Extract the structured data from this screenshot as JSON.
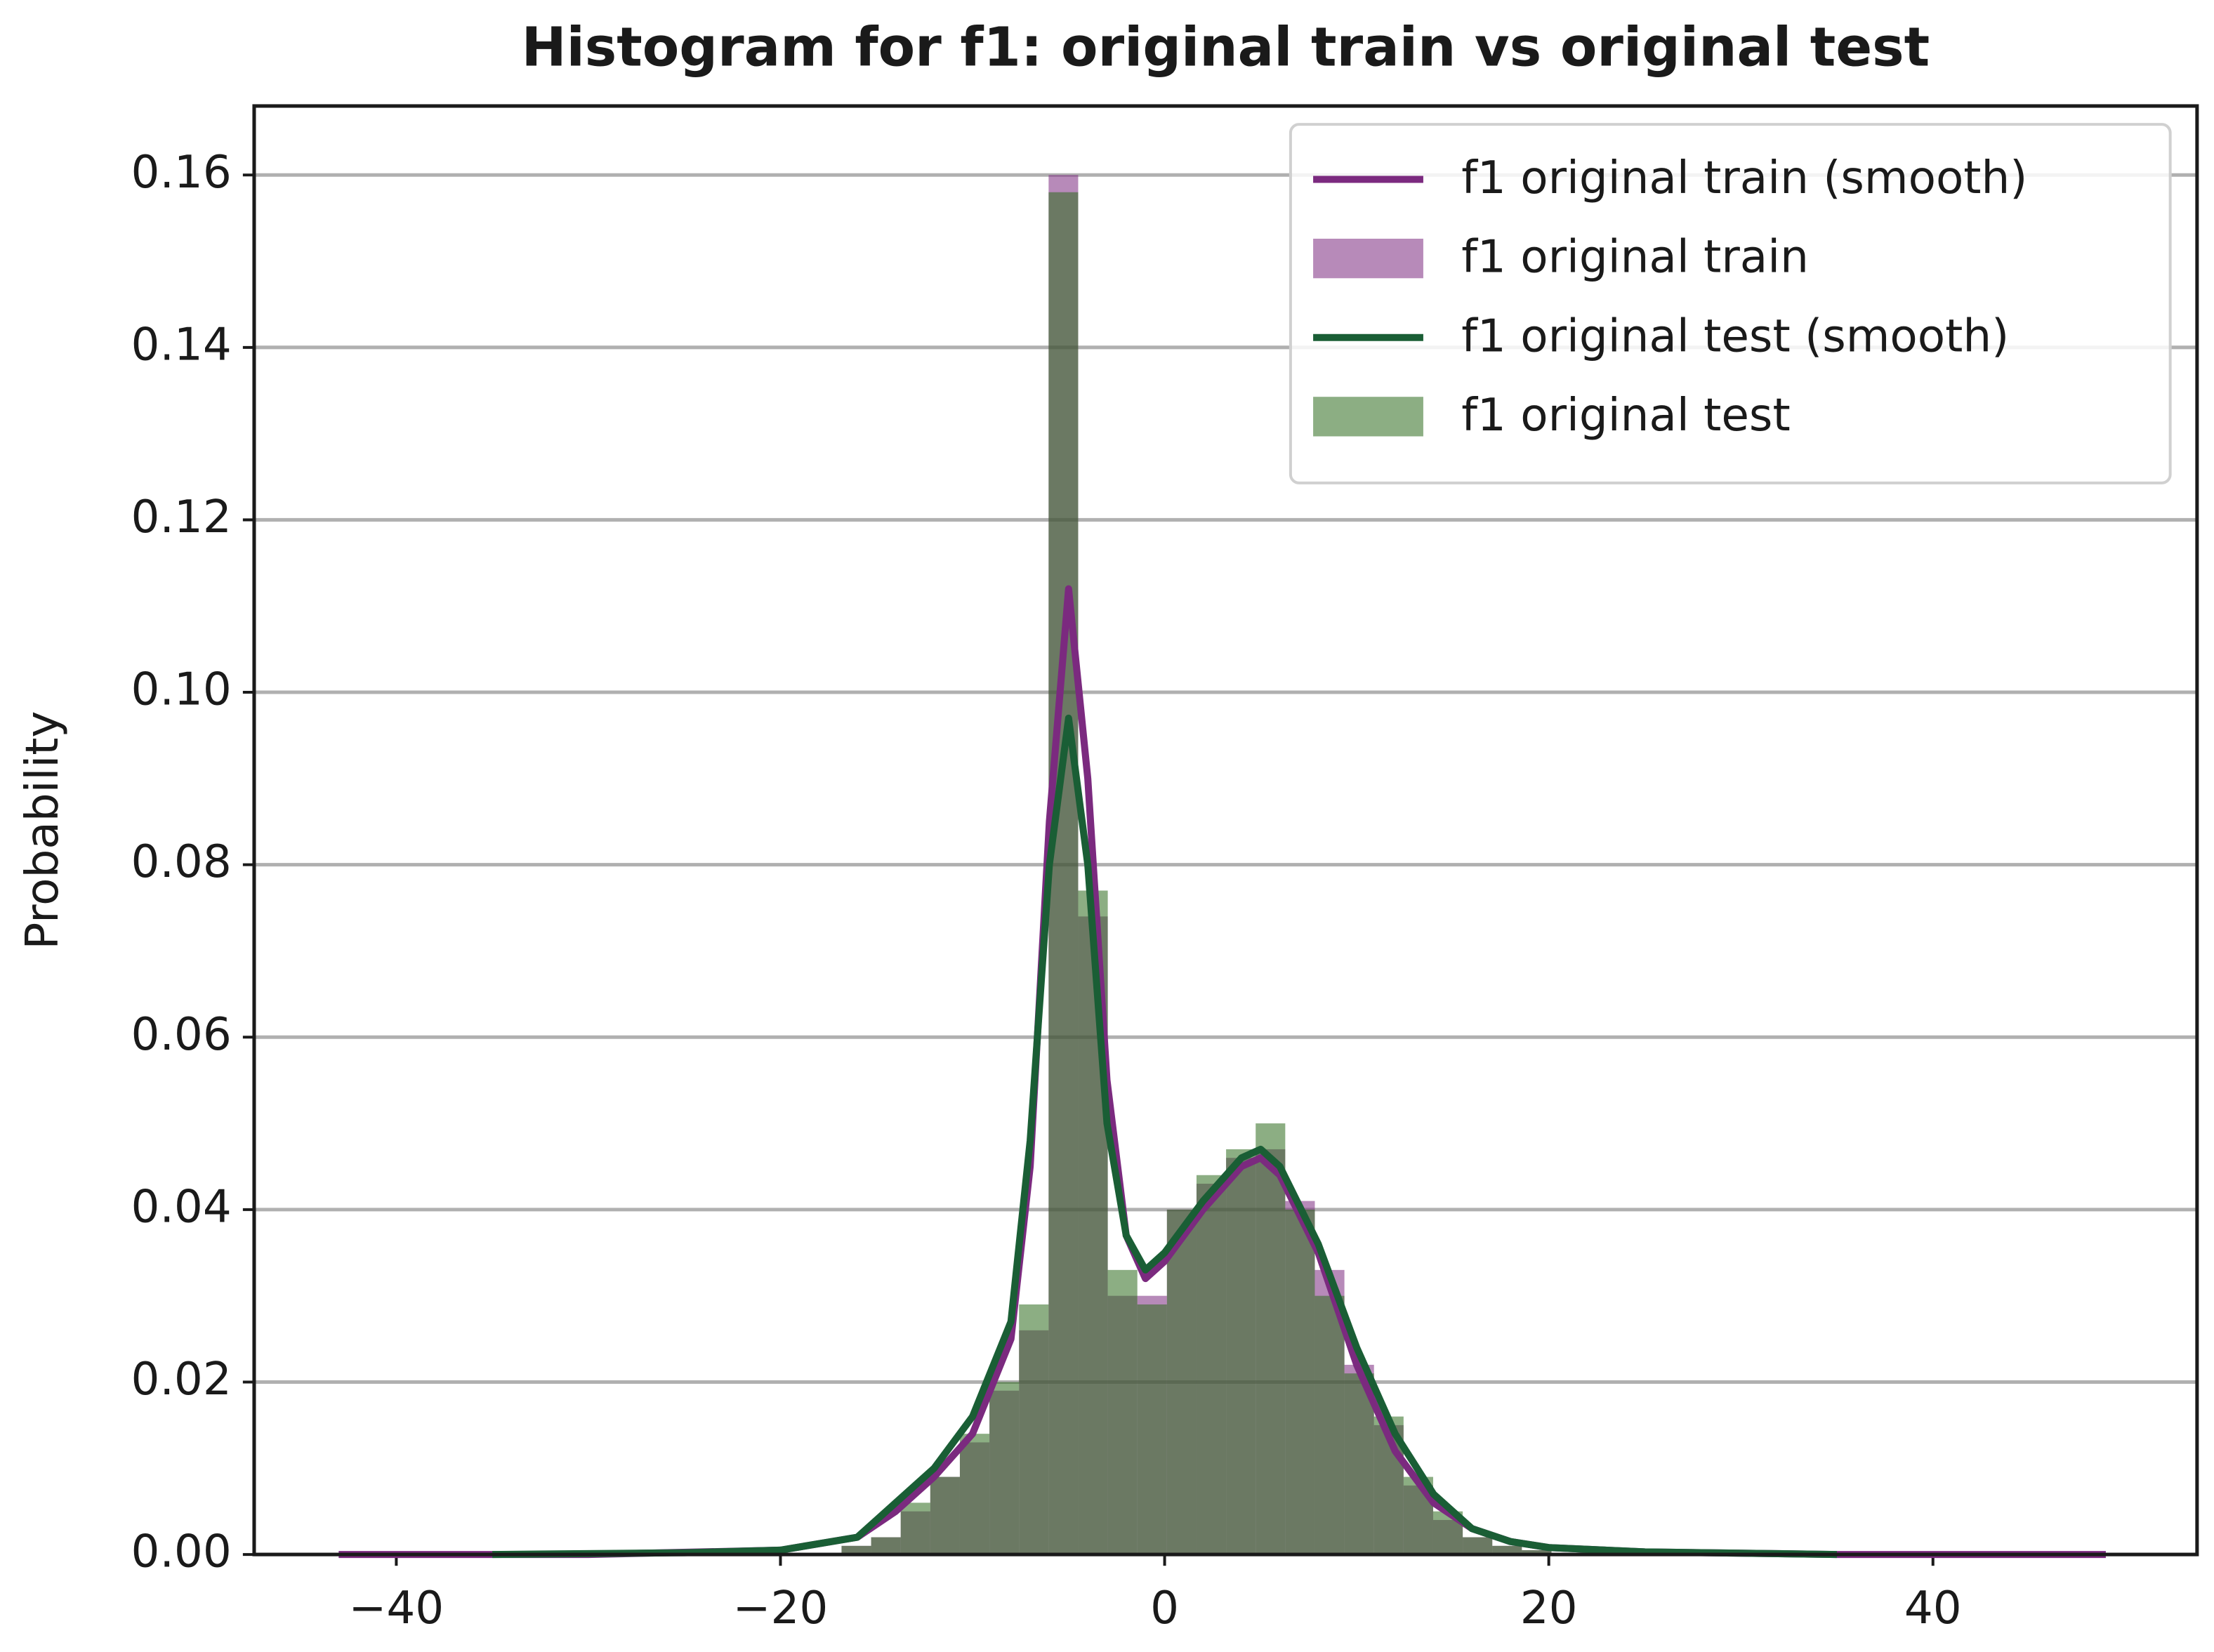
{
  "chart_data": {
    "type": "histogram",
    "title": "Histogram for f1: original train vs original test",
    "y_label": "Probability",
    "xlim": [
      -47.4,
      53.75
    ],
    "ylim": [
      0,
      0.168
    ],
    "xticks": [
      {
        "value": -40,
        "label": "−40"
      },
      {
        "value": -20,
        "label": "−20"
      },
      0,
      20,
      40
    ],
    "yticks": [
      {
        "value": 0,
        "label": "0.00"
      },
      0.02,
      0.04,
      0.06,
      0.08,
      {
        "value": 0.1,
        "label": "0.10"
      },
      0.12,
      0.14,
      0.16
    ],
    "grid": true,
    "legend": "upper right",
    "bins": [
      -43,
      -41.46,
      -39.92,
      -38.38,
      -36.84,
      -35.3,
      -33.76,
      -32.22,
      -30.68,
      -29.14,
      -27.6,
      -26.06,
      -24.52,
      -22.98,
      -21.44,
      -19.9,
      -18.36,
      -16.82,
      -15.28,
      -13.74,
      -12.2,
      -10.66,
      -9.12,
      -7.58,
      -6.04,
      -4.5,
      -2.96,
      -1.42,
      0.12,
      1.66,
      3.2,
      4.74,
      6.28,
      7.82,
      9.36,
      10.9,
      12.44,
      13.98,
      15.52,
      17.06,
      18.6,
      20.14,
      21.68,
      23.22,
      24.76,
      26.3,
      27.84,
      29.38,
      30.92,
      32.46,
      34.0,
      35.54,
      37.08,
      38.62,
      40.16,
      41.7,
      43.24,
      44.78,
      46.32,
      47.86,
      49.4
    ],
    "series": [
      {
        "name": "f1 original train",
        "color": "#7b2a7f",
        "values": [
          0,
          0,
          0,
          0,
          0,
          0,
          0,
          0,
          0,
          0,
          0,
          0,
          0,
          0,
          0,
          0,
          0,
          0.001,
          0.002,
          0.005,
          0.009,
          0.013,
          0.019,
          0.026,
          0.16,
          0.074,
          0.03,
          0.03,
          0.04,
          0.043,
          0.046,
          0.047,
          0.041,
          0.033,
          0.022,
          0.015,
          0.008,
          0.004,
          0.002,
          0.001,
          0.0005,
          0,
          0,
          0,
          0,
          0,
          0,
          0,
          0,
          0,
          0,
          0,
          0,
          0,
          0,
          0,
          0,
          0,
          0,
          0
        ]
      },
      {
        "name": "f1 original test",
        "color": "#2e6b1e",
        "values": [
          0,
          0,
          0,
          0,
          0,
          0,
          0,
          0,
          0,
          0,
          0,
          0,
          0,
          0,
          0,
          0,
          0,
          0.001,
          0.002,
          0.006,
          0.009,
          0.014,
          0.02,
          0.029,
          0.158,
          0.077,
          0.033,
          0.029,
          0.04,
          0.044,
          0.047,
          0.05,
          0.04,
          0.03,
          0.021,
          0.016,
          0.009,
          0.005,
          0.002,
          0.001,
          0.0005,
          0,
          0,
          0,
          0,
          0,
          0,
          0,
          0,
          0,
          0,
          0,
          0,
          0,
          0,
          0,
          0,
          0,
          0,
          0
        ]
      }
    ],
    "smooth": [
      {
        "name": "f1 original train (smooth)",
        "color": "#7b2a7f",
        "x": [
          -43,
          -30,
          -20,
          -16,
          -14,
          -12,
          -10,
          -8,
          -7,
          -6,
          -5,
          -4,
          -3,
          -2,
          -1,
          0,
          2,
          4,
          5,
          6,
          8,
          10,
          12,
          14,
          16,
          18,
          20,
          25,
          35,
          49
        ],
        "y": [
          0,
          0,
          0.0005,
          0.002,
          0.005,
          0.009,
          0.014,
          0.025,
          0.045,
          0.085,
          0.112,
          0.09,
          0.055,
          0.037,
          0.032,
          0.034,
          0.04,
          0.045,
          0.046,
          0.044,
          0.035,
          0.022,
          0.012,
          0.006,
          0.003,
          0.0015,
          0.0008,
          0.0003,
          0,
          0
        ]
      },
      {
        "name": "f1 original test (smooth)",
        "color": "#1a5e35",
        "x": [
          -35,
          -25,
          -20,
          -16,
          -14,
          -12,
          -10,
          -8,
          -7,
          -6,
          -5,
          -4,
          -3,
          -2,
          -1,
          0,
          2,
          4,
          5,
          6,
          8,
          10,
          12,
          14,
          16,
          18,
          20,
          25,
          35
        ],
        "y": [
          0,
          0.0002,
          0.0005,
          0.002,
          0.006,
          0.01,
          0.016,
          0.027,
          0.048,
          0.08,
          0.097,
          0.08,
          0.05,
          0.037,
          0.033,
          0.035,
          0.041,
          0.046,
          0.047,
          0.045,
          0.036,
          0.024,
          0.014,
          0.007,
          0.003,
          0.0015,
          0.0008,
          0.0003,
          0
        ]
      }
    ]
  }
}
